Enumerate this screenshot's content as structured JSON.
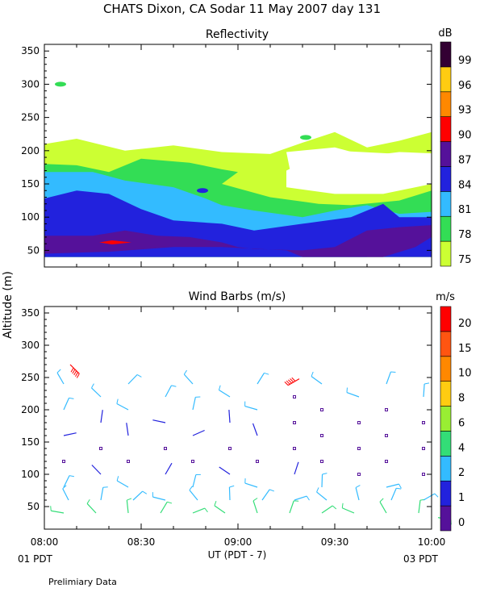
{
  "header": {
    "title": "CHATS Dixon, CA  Sodar  11 May 2007  day 131",
    "ylabel": "Altitude (m)",
    "xlabel": "UT  (PDT - 7)",
    "start_label": "01 PDT",
    "end_label": "03 PDT",
    "footer": "Prelimiary Data"
  },
  "chart_data": [
    {
      "type": "heatmap",
      "title": "Reflectivity",
      "colorbar_unit": "dB",
      "ylim": [
        25,
        360
      ],
      "y_ticks": [
        "50",
        "100",
        "150",
        "200",
        "250",
        "300",
        "350"
      ],
      "x_ticks": [
        "08:00",
        "08:30",
        "09:00",
        "09:30",
        "10:00"
      ],
      "colorbar_levels": [
        "75",
        "78",
        "81",
        "84",
        "87",
        "90",
        "93",
        "96",
        "99"
      ],
      "colorbar_colors": [
        "#ccff33",
        "#33dd55",
        "#33bbff",
        "#2222dd",
        "#55119a",
        "#ff0000",
        "#ff8800",
        "#ffcc11",
        "#330033"
      ],
      "grid": false,
      "legend": "right colorbar",
      "contours": [
        {
          "level": 75,
          "color": "#ccff33",
          "points": [
            [
              "08:00",
              210
            ],
            [
              "08:10",
              218
            ],
            [
              "08:25",
              200
            ],
            [
              "08:40",
              208
            ],
            [
              "08:55",
              198
            ],
            [
              "09:10",
              195
            ],
            [
              "09:20",
              212
            ],
            [
              "09:30",
              228
            ],
            [
              "09:40",
              205
            ],
            [
              "09:50",
              215
            ],
            [
              "10:00",
              228
            ],
            [
              "10:00",
              195
            ],
            [
              "09:50",
              195
            ],
            [
              "09:30",
              200
            ],
            [
              "09:25",
              195
            ],
            [
              "09:20",
              182
            ],
            [
              "09:15",
              170
            ],
            [
              "09:15",
              145
            ],
            [
              "09:30",
              135
            ],
            [
              "09:45",
              135
            ],
            [
              "10:00",
              150
            ],
            [
              "10:00",
              40
            ],
            [
              "08:00",
              40
            ]
          ]
        },
        {
          "level": 78,
          "color": "#33dd55",
          "points": [
            [
              "08:00",
              180
            ],
            [
              "08:10",
              178
            ],
            [
              "08:20",
              168
            ],
            [
              "08:30",
              188
            ],
            [
              "08:45",
              182
            ],
            [
              "08:55",
              172
            ],
            [
              "09:00",
              168
            ],
            [
              "08:55",
              150
            ],
            [
              "09:10",
              130
            ],
            [
              "09:25",
              120
            ],
            [
              "09:35",
              118
            ],
            [
              "09:50",
              125
            ],
            [
              "10:00",
              140
            ],
            [
              "10:00",
              40
            ],
            [
              "08:00",
              40
            ]
          ]
        },
        {
          "level": 81,
          "color": "#33bbff",
          "points": [
            [
              "08:00",
              168
            ],
            [
              "08:15",
              168
            ],
            [
              "08:25",
              155
            ],
            [
              "08:40",
              145
            ],
            [
              "08:50",
              128
            ],
            [
              "08:55",
              118
            ],
            [
              "09:05",
              110
            ],
            [
              "09:20",
              100
            ],
            [
              "09:30",
              110
            ],
            [
              "09:40",
              118
            ],
            [
              "09:50",
              105
            ],
            [
              "10:00",
              108
            ],
            [
              "10:00",
              75
            ],
            [
              "09:55",
              60
            ],
            [
              "09:40",
              40
            ],
            [
              "08:00",
              40
            ]
          ]
        },
        {
          "level": 84,
          "color": "#2222dd",
          "points": [
            [
              "08:00",
              128
            ],
            [
              "08:10",
              140
            ],
            [
              "08:20",
              135
            ],
            [
              "08:30",
              112
            ],
            [
              "08:40",
              95
            ],
            [
              "08:55",
              90
            ],
            [
              "09:05",
              80
            ],
            [
              "09:20",
              90
            ],
            [
              "09:35",
              100
            ],
            [
              "09:45",
              120
            ],
            [
              "09:50",
              100
            ],
            [
              "10:00",
              100
            ],
            [
              "10:00",
              40
            ],
            [
              "08:00",
              40
            ]
          ]
        },
        {
          "level": 87,
          "color": "#55119a",
          "points": [
            [
              "08:00",
              72
            ],
            [
              "08:15",
              72
            ],
            [
              "08:25",
              80
            ],
            [
              "08:35",
              72
            ],
            [
              "08:45",
              70
            ],
            [
              "08:55",
              62
            ],
            [
              "09:00",
              55
            ],
            [
              "09:05",
              52
            ],
            [
              "09:20",
              50
            ],
            [
              "09:30",
              55
            ],
            [
              "09:40",
              80
            ],
            [
              "09:50",
              85
            ],
            [
              "10:00",
              88
            ],
            [
              "10:00",
              70
            ],
            [
              "09:55",
              55
            ],
            [
              "09:45",
              40
            ],
            [
              "09:20",
              40
            ],
            [
              "09:15",
              50
            ],
            [
              "08:55",
              55
            ],
            [
              "08:40",
              55
            ],
            [
              "08:20",
              48
            ],
            [
              "08:00",
              45
            ]
          ]
        },
        {
          "level": 90,
          "color": "#ff0000",
          "points": [
            [
              "08:17",
              62
            ],
            [
              "08:21",
              65
            ],
            [
              "08:27",
              62
            ],
            [
              "08:21",
              59
            ]
          ]
        }
      ],
      "gaps": [
        {
          "points": [
            [
              "09:15",
              198
            ],
            [
              "09:30",
              205
            ],
            [
              "09:40",
              192
            ],
            [
              "09:50",
              198
            ],
            [
              "10:00",
              196
            ],
            [
              "10:00",
              150
            ],
            [
              "09:45",
              140
            ],
            [
              "09:30",
              140
            ],
            [
              "09:17",
              150
            ]
          ]
        }
      ],
      "islands": [
        {
          "level": 78,
          "x": "08:05",
          "y": 300
        },
        {
          "level": 78,
          "x": "09:21",
          "y": 220
        },
        {
          "level": 84,
          "x": "08:49",
          "y": 140
        }
      ]
    },
    {
      "type": "scatter",
      "title": "Wind Barbs (m/s)",
      "colorbar_unit": "m/s",
      "ylim": [
        15,
        360
      ],
      "y_ticks": [
        "50",
        "100",
        "150",
        "200",
        "250",
        "300",
        "350"
      ],
      "x_ticks": [
        "08:00",
        "08:30",
        "09:00",
        "09:30",
        "10:00"
      ],
      "colorbar_levels": [
        "0",
        "1",
        "2",
        "4",
        "6",
        "8",
        "10",
        "15",
        "20"
      ],
      "colorbar_colors": [
        "#55119a",
        "#2222dd",
        "#33bbff",
        "#33dd77",
        "#99ee33",
        "#ffcc11",
        "#ff8800",
        "#ff5511",
        "#ff0000"
      ],
      "grid": false,
      "legend": "right colorbar",
      "barb_columns": [
        "08:06",
        "08:16",
        "08:26",
        "08:36",
        "08:46",
        "08:56",
        "09:06",
        "09:16",
        "09:26",
        "09:36",
        "09:46",
        "09:56"
      ],
      "altitudes": [
        40,
        60,
        80,
        100,
        120,
        140,
        160,
        180,
        200,
        220,
        240
      ],
      "speed_profile": [
        4,
        3,
        2,
        1,
        0.5,
        0.5,
        1,
        1.5,
        2,
        2,
        2.5
      ],
      "highlighted": [
        {
          "x": "08:08",
          "y": 270,
          "speed": 20
        },
        {
          "x": "09:19",
          "y": 248,
          "speed": 20
        },
        {
          "x": "10:02",
          "y": 33,
          "speed": 4
        }
      ]
    }
  ]
}
